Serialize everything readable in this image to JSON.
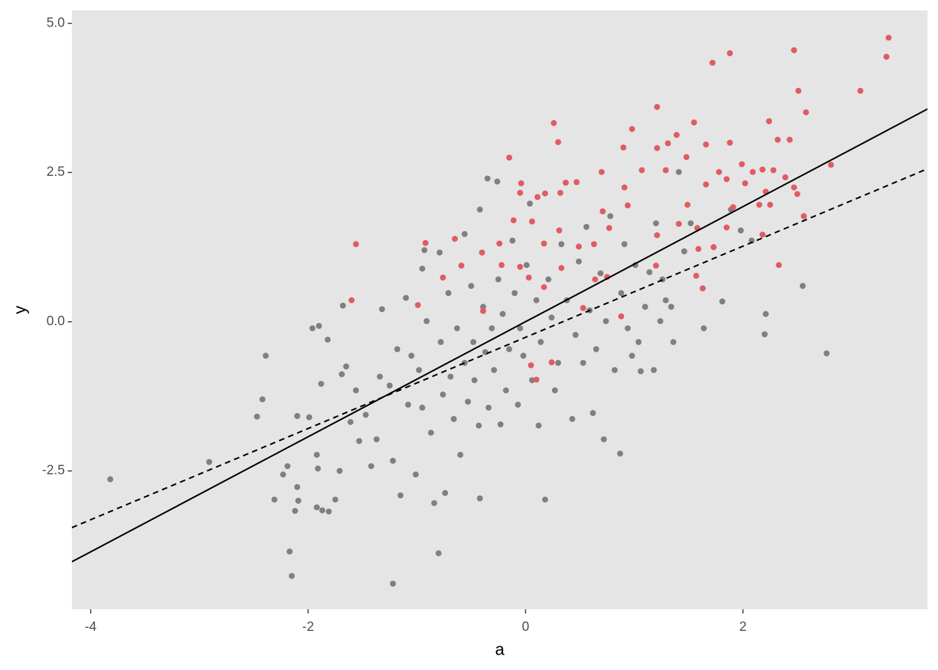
{
  "chart_data": {
    "type": "scatter",
    "xlabel": "a",
    "ylabel": "y",
    "xlim": [
      -4.173,
      3.698
    ],
    "ylim": [
      -4.819,
      5.216
    ],
    "xticks": [
      -4,
      -2,
      0,
      2
    ],
    "yticks": [
      {
        "value": -2.5,
        "label": "-2.5"
      },
      {
        "value": 0,
        "label": "0.0"
      },
      2.5,
      {
        "value": 5,
        "label": "5.0"
      }
    ],
    "grid": false,
    "panel_color": "#e5e5e5",
    "series": [
      {
        "color": "#808080",
        "x": [
          -3.82,
          -2.91,
          -2.47,
          -2.42,
          -2.39,
          -2.31,
          -2.23,
          -2.19,
          -2.17,
          -2.15,
          -2.12,
          -2.09,
          -2.1,
          -2.1,
          -1.99,
          -1.96,
          -1.9,
          -1.92,
          -1.91,
          -1.92,
          -1.87,
          -1.81,
          -1.88,
          -1.82,
          -1.75,
          -1.71,
          -1.69,
          -1.68,
          -1.65,
          -1.61,
          -1.56,
          -1.53,
          -1.47,
          -1.42,
          -1.37,
          -1.34,
          -1.32,
          -1.25,
          -1.22,
          -1.22,
          -1.18,
          -1.15,
          -1.1,
          -1.08,
          -1.05,
          -1.01,
          -0.98,
          -0.95,
          -0.93,
          -0.95,
          -0.91,
          -0.87,
          -0.84,
          -0.8,
          -0.79,
          -0.78,
          -0.76,
          -0.74,
          -0.71,
          -0.69,
          -0.66,
          -0.63,
          -0.6,
          -0.56,
          -0.56,
          -0.53,
          -0.5,
          -0.48,
          -0.47,
          -0.42,
          -0.43,
          -0.42,
          -0.39,
          -0.37,
          -0.35,
          -0.34,
          -0.31,
          -0.29,
          -0.26,
          -0.25,
          -0.23,
          -0.21,
          -0.18,
          -0.15,
          -0.12,
          -0.1,
          -0.07,
          -0.05,
          -0.02,
          0.01,
          0.04,
          0.06,
          0.1,
          0.12,
          0.14,
          0.18,
          0.21,
          0.24,
          0.27,
          0.3,
          0.33,
          0.37,
          0.38,
          0.43,
          0.46,
          0.49,
          0.53,
          0.56,
          0.59,
          0.62,
          0.65,
          0.69,
          0.72,
          0.74,
          0.78,
          0.82,
          0.87,
          0.88,
          0.91,
          0.94,
          0.98,
          1.01,
          1.04,
          1.06,
          1.1,
          1.14,
          1.18,
          1.2,
          1.24,
          1.26,
          1.29,
          1.34,
          1.36,
          1.41,
          1.46,
          1.52,
          1.64,
          1.81,
          1.89,
          1.98,
          2.08,
          2.2,
          2.21,
          2.55,
          2.77
        ],
        "y": [
          -2.64,
          -2.35,
          -1.59,
          -1.3,
          -0.57,
          -2.98,
          -2.56,
          -2.42,
          -3.85,
          -4.26,
          -3.17,
          -3.0,
          -2.77,
          -1.58,
          -1.6,
          -0.11,
          -0.07,
          -2.23,
          -2.46,
          -3.11,
          -3.16,
          -3.18,
          -1.04,
          -0.3,
          -2.98,
          -2.5,
          -0.88,
          0.27,
          -0.75,
          -1.68,
          -1.15,
          -2.0,
          -1.56,
          -2.42,
          -1.97,
          -0.92,
          0.21,
          -1.07,
          -4.39,
          -2.33,
          -0.46,
          -2.91,
          0.4,
          -1.39,
          -0.57,
          -2.56,
          -0.81,
          -1.44,
          1.2,
          0.89,
          0.01,
          -1.86,
          -3.04,
          -3.88,
          1.16,
          -0.34,
          -1.22,
          -2.87,
          0.48,
          -0.92,
          -1.63,
          -0.11,
          -2.23,
          1.47,
          -0.69,
          -1.34,
          0.6,
          -0.34,
          -0.98,
          1.88,
          -1.74,
          -2.96,
          0.25,
          -0.51,
          2.4,
          -1.44,
          -0.11,
          -0.81,
          2.35,
          0.71,
          -1.72,
          0.13,
          -1.15,
          -0.46,
          1.36,
          0.48,
          -1.39,
          -0.11,
          -0.57,
          0.95,
          1.98,
          -0.98,
          0.36,
          -1.74,
          -0.34,
          -2.98,
          0.71,
          0.07,
          -1.15,
          -0.69,
          1.3,
          2.33,
          0.36,
          -1.63,
          -0.22,
          1.01,
          -0.69,
          1.59,
          0.19,
          -1.53,
          -0.46,
          0.81,
          -1.97,
          0.01,
          1.77,
          -0.81,
          -2.21,
          0.48,
          1.3,
          -0.11,
          -0.57,
          0.95,
          -0.34,
          -0.83,
          0.25,
          0.83,
          -0.81,
          1.65,
          0.01,
          0.71,
          0.36,
          0.25,
          -0.34,
          2.51,
          1.18,
          1.65,
          -0.11,
          0.34,
          1.88,
          1.53,
          1.36,
          -0.21,
          0.13,
          0.6,
          -0.53
        ]
      },
      {
        "color": "#df5c63",
        "x": [
          3.34,
          3.32,
          2.47,
          1.88,
          1.72,
          3.08,
          2.51,
          2.58,
          1.21,
          0.26,
          0.98,
          1.55,
          1.39,
          0.3,
          1.88,
          2.24,
          2.32,
          2.43,
          -0.15,
          0.9,
          1.21,
          1.31,
          1.48,
          1.66,
          2.81,
          1.99,
          2.09,
          2.18,
          2.28,
          0.7,
          1.07,
          1.29,
          -0.04,
          -0.05,
          0.11,
          0.18,
          0.32,
          0.47,
          0.37,
          0.91,
          1.66,
          1.78,
          2.47,
          1.85,
          2.02,
          2.21,
          2.39,
          0.94,
          1.49,
          2.15,
          2.25,
          2.5,
          2.56,
          1.41,
          1.58,
          1.85,
          2.18,
          -1.56,
          -0.92,
          -0.65,
          -0.24,
          -0.11,
          0.06,
          0.17,
          0.31,
          0.49,
          0.63,
          0.77,
          1.21,
          1.59,
          1.73,
          2.33,
          1.2,
          1.57,
          1.63,
          -0.4,
          -0.22,
          -0.05,
          0.33,
          -0.59,
          -0.76,
          0.03,
          0.17,
          0.64,
          0.75,
          -1.6,
          -0.99,
          -0.39,
          0.53,
          0.88,
          0.05,
          0.1,
          0.24,
          0.71,
          1.91
        ],
        "y": [
          4.76,
          4.44,
          4.55,
          4.5,
          4.34,
          3.87,
          3.87,
          3.51,
          3.6,
          3.33,
          3.23,
          3.34,
          3.13,
          3.01,
          3.0,
          3.36,
          3.05,
          3.05,
          2.75,
          2.92,
          2.91,
          2.99,
          2.76,
          2.97,
          2.63,
          2.64,
          2.51,
          2.55,
          2.54,
          2.51,
          2.54,
          2.54,
          2.32,
          2.16,
          2.09,
          2.15,
          2.16,
          2.34,
          2.33,
          2.25,
          2.3,
          2.51,
          2.25,
          2.39,
          2.32,
          2.18,
          2.42,
          1.95,
          1.96,
          1.96,
          1.96,
          2.14,
          1.77,
          1.64,
          1.57,
          1.58,
          1.46,
          1.3,
          1.32,
          1.39,
          1.31,
          1.7,
          1.68,
          1.31,
          1.53,
          1.26,
          1.3,
          1.57,
          1.45,
          1.22,
          1.25,
          0.95,
          0.94,
          0.77,
          0.56,
          1.16,
          0.95,
          0.92,
          0.9,
          0.94,
          0.74,
          0.74,
          0.58,
          0.71,
          0.75,
          0.36,
          0.28,
          0.18,
          0.23,
          0.09,
          -0.73,
          -0.97,
          -0.68,
          1.85,
          1.92
        ]
      }
    ],
    "lines": [
      {
        "slope": 0.964,
        "intercept": 0.0,
        "dashed": false,
        "color": "#000000"
      },
      {
        "slope": 0.764,
        "intercept": -0.262,
        "dashed": true,
        "color": "#000000"
      }
    ]
  }
}
